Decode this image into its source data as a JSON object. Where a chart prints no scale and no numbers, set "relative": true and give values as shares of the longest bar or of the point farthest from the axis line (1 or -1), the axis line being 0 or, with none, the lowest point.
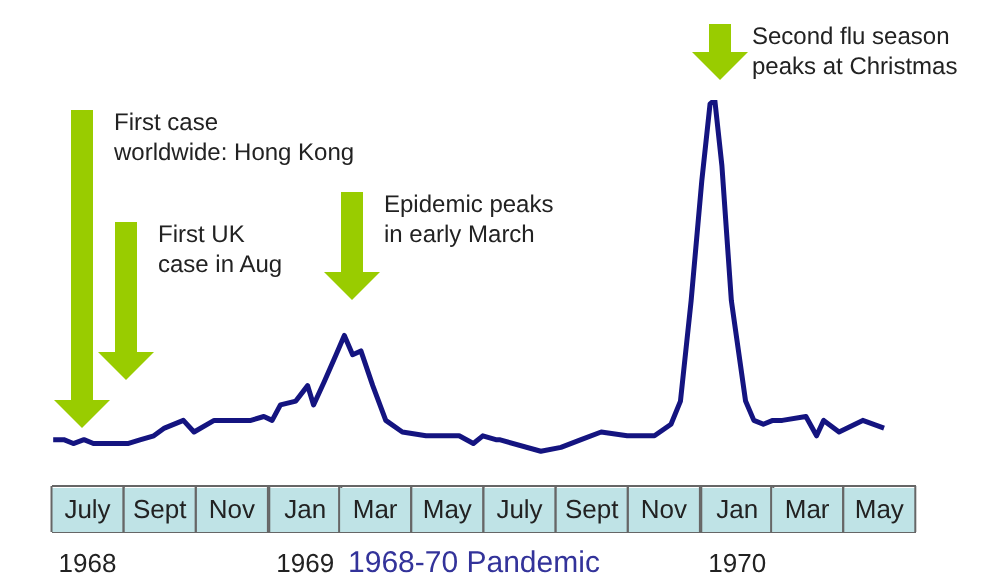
{
  "chart_data": {
    "type": "line",
    "title": "1968-70 Pandemic",
    "relative": true,
    "xlim": [
      "1968-07-01",
      "1970-07-01"
    ],
    "xticks": [
      {
        "value": "1968-07-31",
        "label": "July"
      },
      {
        "value": "1968-09-30",
        "label": "Sept"
      },
      {
        "value": "1968-11-30",
        "label": "Nov"
      },
      {
        "value": "1969-01-31",
        "label": "Jan"
      },
      {
        "value": "1969-03-31",
        "label": "Mar"
      },
      {
        "value": "1969-05-31",
        "label": "May"
      },
      {
        "value": "1969-07-31",
        "label": "July"
      },
      {
        "value": "1969-09-30",
        "label": "Sept"
      },
      {
        "value": "1969-11-30",
        "label": "Nov"
      },
      {
        "value": "1970-01-31",
        "label": "Jan"
      },
      {
        "value": "1970-03-31",
        "label": "Mar"
      },
      {
        "value": "1970-05-31",
        "label": "May"
      }
    ],
    "x2lim": [
      "1968-07-01",
      "1970-07-01"
    ],
    "x2ticks": [
      {
        "value": "1968-07-31",
        "label": "1968"
      },
      {
        "value": "1969-01-31",
        "label": "1969"
      },
      {
        "value": "1970-01-31",
        "label": "1970"
      }
    ],
    "x": [
      "1968-07-02",
      "1968-07-11",
      "1968-07-19",
      "1968-07-28",
      "1968-08-05",
      "1968-08-14",
      "1968-09-03",
      "1968-09-14",
      "1968-09-25",
      "1968-10-04",
      "1968-10-20",
      "1968-10-29",
      "1968-11-15",
      "1968-12-05",
      "1968-12-16",
      "1968-12-27",
      "1969-01-03",
      "1969-01-10",
      "1969-01-23",
      "1969-02-02",
      "1969-02-07",
      "1969-02-16",
      "1969-02-26",
      "1969-03-05",
      "1969-03-12",
      "1969-03-19",
      "1969-03-29",
      "1969-04-09",
      "1969-04-23",
      "1969-05-13",
      "1969-06-10",
      "1969-06-22",
      "1969-06-30",
      "1969-07-11",
      "1969-07-14",
      "1969-08-18",
      "1969-09-04",
      "1969-09-21",
      "1969-10-08",
      "1969-10-30",
      "1969-11-22",
      "1969-12-06",
      "1969-12-14",
      "1969-12-23",
      "1970-01-01",
      "1970-01-08",
      "1970-01-12",
      "1970-01-18",
      "1970-01-26",
      "1970-02-07",
      "1970-02-14",
      "1970-02-22",
      "1970-03-02",
      "1970-03-10",
      "1970-03-30",
      "1970-04-08",
      "1970-04-14",
      "1970-04-27",
      "1970-05-17",
      "1970-06-04"
    ],
    "series": [
      {
        "color": "#141480",
        "values": [
          0.12,
          0.12,
          0.11,
          0.12,
          0.11,
          0.11,
          0.11,
          0.12,
          0.13,
          0.15,
          0.17,
          0.14,
          0.17,
          0.17,
          0.17,
          0.18,
          0.17,
          0.21,
          0.22,
          0.26,
          0.21,
          0.27,
          0.34,
          0.39,
          0.34,
          0.35,
          0.26,
          0.17,
          0.14,
          0.13,
          0.13,
          0.11,
          0.13,
          0.12,
          0.12,
          0.09,
          0.1,
          0.12,
          0.14,
          0.13,
          0.13,
          0.16,
          0.22,
          0.48,
          0.79,
          0.99,
          1,
          0.83,
          0.48,
          0.22,
          0.17,
          0.16,
          0.17,
          0.17,
          0.18,
          0.13,
          0.17,
          0.14,
          0.17,
          0.15
        ]
      }
    ],
    "annotations": [
      "First case worldwide: Hong Kong",
      "First UK case in Aug",
      "Epidemic peaks in early March",
      "Second flu season peaks at Christmas"
    ]
  }
}
